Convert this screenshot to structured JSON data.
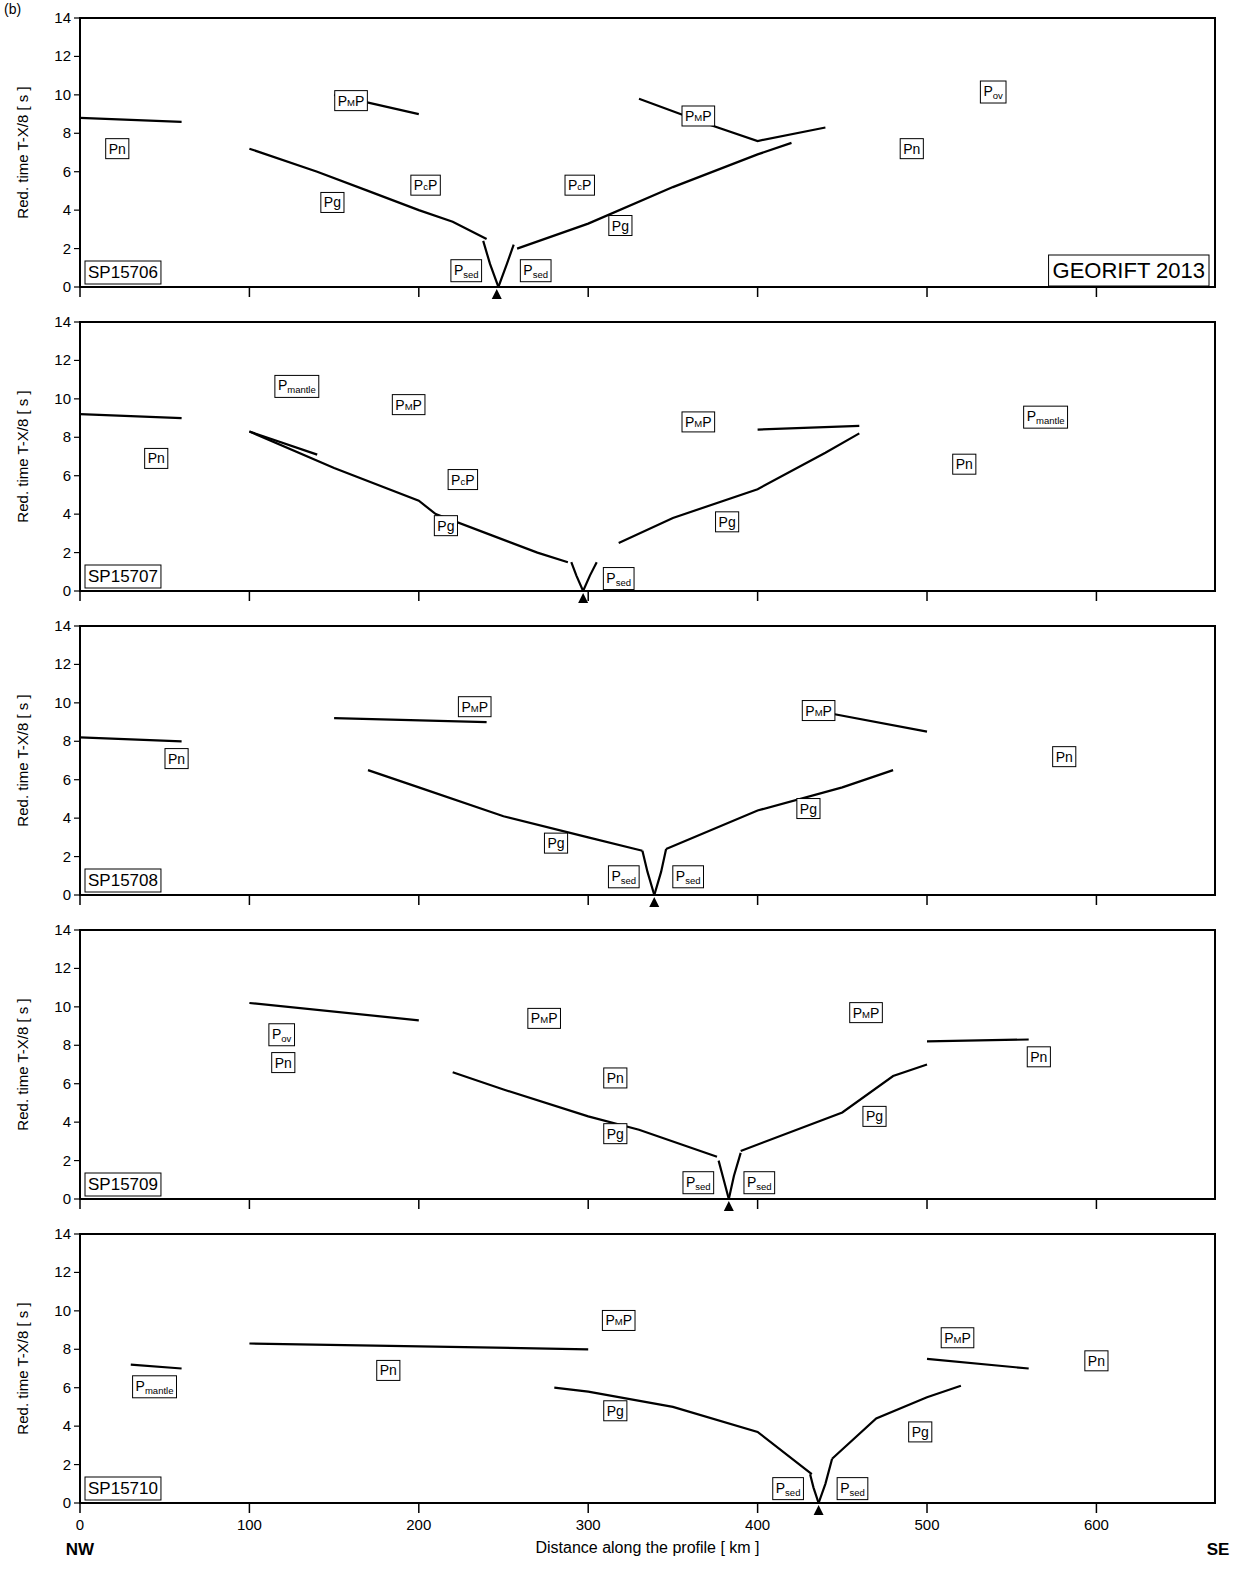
{
  "figure_label": "(b)",
  "survey_label": "GEORIFT 2013",
  "direction_labels": [
    "NW",
    "SE"
  ],
  "chart_data": [
    {
      "type": "line",
      "title": "SP15706",
      "ylabel": "Red. time  T-X/8  [ s ]",
      "xlim": [
        0,
        670
      ],
      "ylim": [
        0,
        14
      ],
      "xticks": [
        0,
        100,
        200,
        300,
        400,
        500,
        600
      ],
      "yticks": [
        0,
        2,
        4,
        6,
        8,
        10,
        12,
        14
      ],
      "tick_labels": "y",
      "source_x": 246,
      "series": [
        {
          "x": [
            240,
            220,
            200,
            170,
            140,
            100
          ],
          "values": [
            2.5,
            3.4,
            4.0,
            5.0,
            6.0,
            7.2
          ],
          "color": "#000000"
        },
        {
          "x": [
            247,
            242,
            238
          ],
          "values": [
            0,
            1.2,
            2.4
          ],
          "color": "#000000"
        },
        {
          "x": [
            247,
            252,
            256
          ],
          "values": [
            0,
            1.2,
            2.2
          ],
          "color": "#000000"
        },
        {
          "x": [
            258,
            300,
            350,
            400,
            420
          ],
          "values": [
            2.0,
            3.3,
            5.2,
            6.9,
            7.5
          ],
          "color": "#000000"
        },
        {
          "x": [
            330,
            370,
            400,
            440
          ],
          "values": [
            9.8,
            8.5,
            7.6,
            8.3
          ],
          "color": "#000000"
        },
        {
          "x": [
            0,
            60
          ],
          "values": [
            8.8,
            8.6
          ],
          "color": "#000000"
        },
        {
          "x": [
            150,
            200
          ],
          "values": [
            10.0,
            9.0
          ],
          "color": "#000000"
        }
      ],
      "annotations": [
        {
          "text": "Pn",
          "x": 22,
          "y": 7.2
        },
        {
          "text": "PMP",
          "x": 160,
          "y": 9.7
        },
        {
          "text": "Pg",
          "x": 149,
          "y": 4.4
        },
        {
          "text": "PcP",
          "x": 204,
          "y": 5.3
        },
        {
          "text": "Psed",
          "x": 228,
          "y": 0.9
        },
        {
          "text": "Psed",
          "x": 269,
          "y": 0.9
        },
        {
          "text": "PcP",
          "x": 295,
          "y": 5.3
        },
        {
          "text": "PMP",
          "x": 365,
          "y": 8.9
        },
        {
          "text": "Pg",
          "x": 319,
          "y": 3.2
        },
        {
          "text": "Pn",
          "x": 491,
          "y": 7.2
        },
        {
          "text": "Pov",
          "x": 539,
          "y": 10.2
        }
      ]
    },
    {
      "type": "line",
      "title": "SP15707",
      "ylabel": "Red. time  T-X/8  [ s ]",
      "xlim": [
        0,
        670
      ],
      "ylim": [
        0,
        14
      ],
      "xticks": [
        0,
        100,
        200,
        300,
        400,
        500,
        600
      ],
      "yticks": [
        0,
        2,
        4,
        6,
        8,
        10,
        12,
        14
      ],
      "tick_labels": "y",
      "source_x": 297,
      "series": [
        {
          "x": [
            288,
            270,
            240,
            210,
            200,
            150,
            100
          ],
          "values": [
            1.5,
            2.0,
            3.0,
            4.0,
            4.7,
            6.4,
            8.3
          ],
          "color": "#000000"
        },
        {
          "x": [
            297,
            293,
            290
          ],
          "values": [
            0,
            0.8,
            1.5
          ],
          "color": "#000000"
        },
        {
          "x": [
            297,
            301,
            305
          ],
          "values": [
            0,
            0.8,
            1.5
          ],
          "color": "#000000"
        },
        {
          "x": [
            318,
            350,
            400,
            440,
            460
          ],
          "values": [
            2.5,
            3.8,
            5.3,
            7.2,
            8.2
          ],
          "color": "#000000"
        },
        {
          "x": [
            100,
            140
          ],
          "values": [
            8.3,
            7.1
          ],
          "color": "#000000"
        },
        {
          "x": [
            0,
            60
          ],
          "values": [
            9.2,
            9.0
          ],
          "color": "#000000"
        },
        {
          "x": [
            400,
            460
          ],
          "values": [
            8.4,
            8.6
          ],
          "color": "#000000"
        }
      ],
      "annotations": [
        {
          "text": "Pmantle",
          "x": 128,
          "y": 10.7
        },
        {
          "text": "PMP",
          "x": 194,
          "y": 9.7
        },
        {
          "text": "Pn",
          "x": 45,
          "y": 6.9
        },
        {
          "text": "PcP",
          "x": 226,
          "y": 5.8
        },
        {
          "text": "Pg",
          "x": 216,
          "y": 3.4
        },
        {
          "text": "Psed",
          "x": 318,
          "y": 0.7
        },
        {
          "text": "PMP",
          "x": 365,
          "y": 8.8
        },
        {
          "text": "Pg",
          "x": 382,
          "y": 3.6
        },
        {
          "text": "Pmantle",
          "x": 570,
          "y": 9.1
        },
        {
          "text": "Pn",
          "x": 522,
          "y": 6.6
        }
      ]
    },
    {
      "type": "line",
      "title": "SP15708",
      "ylabel": "Red. time  T-X/8  [ s ]",
      "xlim": [
        0,
        670
      ],
      "ylim": [
        0,
        14
      ],
      "xticks": [
        0,
        100,
        200,
        300,
        400,
        500,
        600
      ],
      "yticks": [
        0,
        2,
        4,
        6,
        8,
        10,
        12,
        14
      ],
      "tick_labels": "y",
      "source_x": 339,
      "series": [
        {
          "x": [
            332,
            300,
            250,
            200,
            170
          ],
          "values": [
            2.3,
            3.0,
            4.1,
            5.6,
            6.5
          ],
          "color": "#000000"
        },
        {
          "x": [
            339,
            335,
            332
          ],
          "values": [
            0,
            1.2,
            2.3
          ],
          "color": "#000000"
        },
        {
          "x": [
            339,
            343,
            346
          ],
          "values": [
            0,
            1.2,
            2.4
          ],
          "color": "#000000"
        },
        {
          "x": [
            346,
            400,
            450,
            480
          ],
          "values": [
            2.4,
            4.4,
            5.6,
            6.5
          ],
          "color": "#000000"
        },
        {
          "x": [
            150,
            240
          ],
          "values": [
            9.2,
            9.0
          ],
          "color": "#000000"
        },
        {
          "x": [
            440,
            500
          ],
          "values": [
            9.5,
            8.5
          ],
          "color": "#000000"
        },
        {
          "x": [
            0,
            60
          ],
          "values": [
            8.2,
            8.0
          ],
          "color": "#000000"
        }
      ],
      "annotations": [
        {
          "text": "PMP",
          "x": 233,
          "y": 9.8
        },
        {
          "text": "Pn",
          "x": 57,
          "y": 7.1
        },
        {
          "text": "Pg",
          "x": 281,
          "y": 2.7
        },
        {
          "text": "Psed",
          "x": 321,
          "y": 1.0
        },
        {
          "text": "Psed",
          "x": 359,
          "y": 1.0
        },
        {
          "text": "PMP",
          "x": 436,
          "y": 9.6
        },
        {
          "text": "Pg",
          "x": 430,
          "y": 4.5
        },
        {
          "text": "Pn",
          "x": 581,
          "y": 7.2
        }
      ]
    },
    {
      "type": "line",
      "title": "SP15709",
      "ylabel": "Red. time  T-X/8  [ s ]",
      "xlim": [
        0,
        670
      ],
      "ylim": [
        0,
        14
      ],
      "xticks": [
        0,
        100,
        200,
        300,
        400,
        500,
        600
      ],
      "yticks": [
        0,
        2,
        4,
        6,
        8,
        10,
        12,
        14
      ],
      "tick_labels": "y",
      "source_x": 383,
      "series": [
        {
          "x": [
            376,
            330,
            300,
            250,
            220
          ],
          "values": [
            2.2,
            3.6,
            4.3,
            5.7,
            6.6
          ],
          "color": "#000000"
        },
        {
          "x": [
            383,
            380,
            377
          ],
          "values": [
            0,
            1.0,
            2.0
          ],
          "color": "#000000"
        },
        {
          "x": [
            383,
            386,
            390
          ],
          "values": [
            0,
            1.2,
            2.4
          ],
          "color": "#000000"
        },
        {
          "x": [
            390,
            450,
            480,
            500
          ],
          "values": [
            2.5,
            4.5,
            6.4,
            7.0
          ],
          "color": "#000000"
        },
        {
          "x": [
            500,
            560
          ],
          "values": [
            8.2,
            8.3
          ],
          "color": "#000000"
        },
        {
          "x": [
            100,
            200
          ],
          "values": [
            10.2,
            9.3
          ],
          "color": "#000000"
        }
      ],
      "annotations": [
        {
          "text": "Pov",
          "x": 119,
          "y": 8.6
        },
        {
          "text": "Pn",
          "x": 120,
          "y": 7.1
        },
        {
          "text": "PMP",
          "x": 274,
          "y": 9.4
        },
        {
          "text": "Pn",
          "x": 316,
          "y": 6.3
        },
        {
          "text": "Pg",
          "x": 316,
          "y": 3.4
        },
        {
          "text": "Psed",
          "x": 365,
          "y": 0.9
        },
        {
          "text": "Psed",
          "x": 401,
          "y": 0.9
        },
        {
          "text": "PMP",
          "x": 464,
          "y": 9.7
        },
        {
          "text": "Pg",
          "x": 469,
          "y": 4.3
        },
        {
          "text": "Pn",
          "x": 566,
          "y": 7.4
        }
      ]
    },
    {
      "type": "line",
      "title": "SP15710",
      "ylabel": "Red. time  T-X/8  [ s ]",
      "xlabel": "Distance along the profile  [ km ]",
      "xlim": [
        0,
        670
      ],
      "ylim": [
        0,
        14
      ],
      "xticks": [
        0,
        100,
        200,
        300,
        400,
        500,
        600
      ],
      "yticks": [
        0,
        2,
        4,
        6,
        8,
        10,
        12,
        14
      ],
      "source_x": 436,
      "series": [
        {
          "x": [
            432,
            400,
            350,
            300,
            280
          ],
          "values": [
            1.5,
            3.7,
            5.0,
            5.8,
            6.0
          ],
          "color": "#000000"
        },
        {
          "x": [
            436,
            433,
            431
          ],
          "values": [
            0,
            0.8,
            1.5
          ],
          "color": "#000000"
        },
        {
          "x": [
            436,
            440,
            444
          ],
          "values": [
            0,
            1.0,
            2.3
          ],
          "color": "#000000"
        },
        {
          "x": [
            444,
            470,
            500,
            520
          ],
          "values": [
            2.3,
            4.4,
            5.5,
            6.1
          ],
          "color": "#000000"
        },
        {
          "x": [
            100,
            300
          ],
          "values": [
            8.3,
            8.0
          ],
          "color": "#000000"
        },
        {
          "x": [
            30,
            60
          ],
          "values": [
            7.2,
            7.0
          ],
          "color": "#000000"
        },
        {
          "x": [
            500,
            560
          ],
          "values": [
            7.5,
            7.0
          ],
          "color": "#000000"
        }
      ],
      "annotations": [
        {
          "text": "Pmantle",
          "x": 44,
          "y": 6.1
        },
        {
          "text": "Pn",
          "x": 182,
          "y": 6.9
        },
        {
          "text": "PMP",
          "x": 318,
          "y": 9.5
        },
        {
          "text": "Pg",
          "x": 316,
          "y": 4.8
        },
        {
          "text": "Psed",
          "x": 418,
          "y": 0.8
        },
        {
          "text": "Psed",
          "x": 456,
          "y": 0.8
        },
        {
          "text": "PMP",
          "x": 518,
          "y": 8.6
        },
        {
          "text": "Pg",
          "x": 496,
          "y": 3.7
        },
        {
          "text": "Pn",
          "x": 600,
          "y": 7.4
        }
      ]
    }
  ]
}
